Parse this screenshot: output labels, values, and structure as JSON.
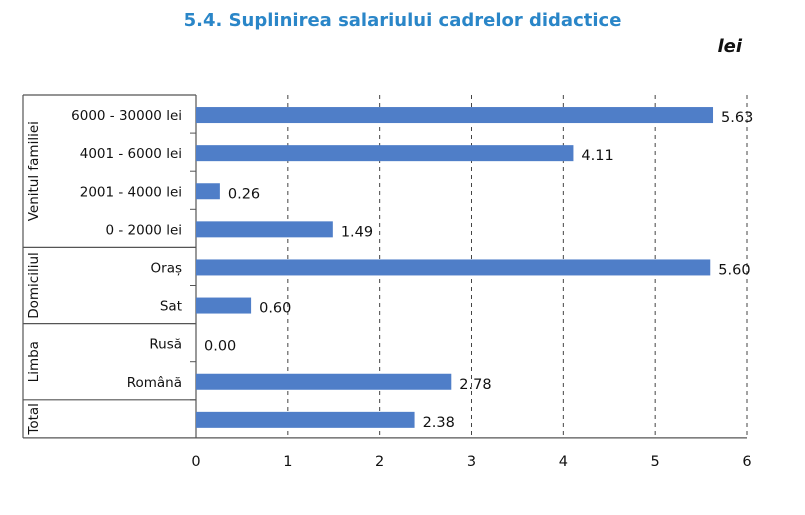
{
  "chart_data": {
    "type": "bar",
    "orientation": "horizontal",
    "title": "5.4. Suplinirea salariului cadrelor didactice",
    "unit": "lei",
    "xlim": [
      0,
      6
    ],
    "xticks": [
      "0",
      "1",
      "2",
      "3",
      "4",
      "5",
      "6"
    ],
    "grid": "vertical dashed",
    "bar_color": "#4f7ec8",
    "groups": [
      {
        "name": "Venitul familiei",
        "first": 0,
        "last": 3
      },
      {
        "name": "Domiciliul",
        "first": 4,
        "last": 5
      },
      {
        "name": "Limba",
        "first": 6,
        "last": 7
      },
      {
        "name": "Total",
        "first": 8,
        "last": 8
      }
    ],
    "categories": [
      "6000 - 30000 lei",
      "4001 - 6000 lei",
      "2001 - 4000 lei",
      "0 - 2000 lei",
      "Oraș",
      "Sat",
      "Rusă",
      "Română",
      ""
    ],
    "values": [
      5.63,
      4.11,
      0.26,
      1.49,
      5.6,
      0.6,
      0.0,
      2.78,
      2.38
    ],
    "value_labels": [
      "5.63",
      "4.11",
      "0.26",
      "1.49",
      "5.60",
      "0.60",
      "0.00",
      "2.78",
      "2.38"
    ]
  }
}
